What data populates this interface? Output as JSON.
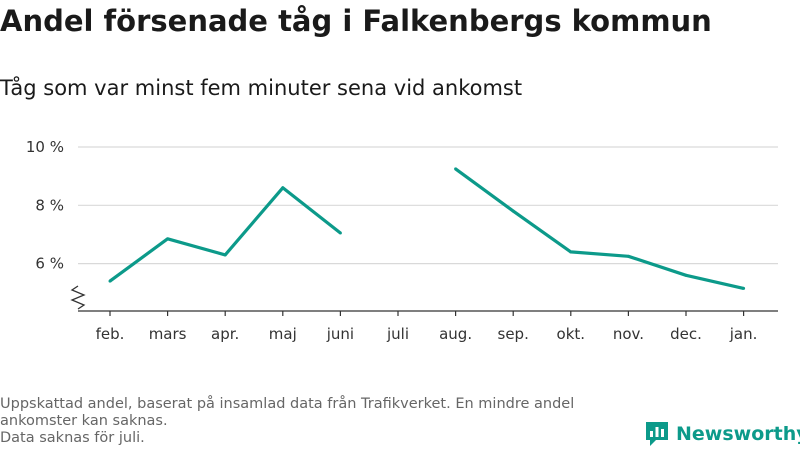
{
  "title": "Andel försenade tåg i Falkenbergs kommun",
  "subtitle": "Tåg som var minst fem minuter sena vid ankomst",
  "notes": [
    "Uppskattad andel, baserat på insamlad data från Trafikverket. En mindre andel ankomster kan saknas.",
    "Data saknas för juli."
  ],
  "brand": {
    "name": "Newsworthy",
    "icon": "newsworthy-logo-icon"
  },
  "colors": {
    "line": "#0c9a8a",
    "grid": "#d9d9d9",
    "axis": "#333333"
  },
  "chart_data": {
    "type": "line",
    "categories": [
      "feb.",
      "mars",
      "apr.",
      "maj",
      "juni",
      "juli",
      "aug.",
      "sep.",
      "okt.",
      "nov.",
      "dec.",
      "jan."
    ],
    "series": [
      {
        "values": [
          5.4,
          6.85,
          6.3,
          8.6,
          7.05,
          null,
          9.25,
          7.8,
          6.4,
          6.25,
          5.6,
          5.15
        ]
      }
    ],
    "y_ticks": [
      {
        "value": 6,
        "label": "6 %"
      },
      {
        "value": 8,
        "label": "8 %"
      },
      {
        "value": 10,
        "label": "10 %"
      }
    ],
    "ylim": [
      4.4,
      10
    ],
    "y_axis_break": true,
    "grid": true
  }
}
